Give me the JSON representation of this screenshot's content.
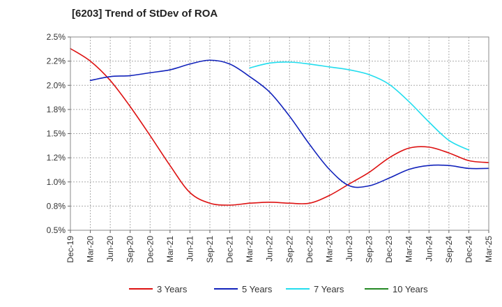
{
  "chart_data": {
    "type": "line",
    "title": "[6203]  Trend of StDev of ROA",
    "xlabel": "",
    "ylabel": "",
    "ylim": [
      0.5,
      2.5
    ],
    "y_ticks": [
      {
        "value": 0.5,
        "label": "0.5%"
      },
      {
        "value": 0.75,
        "label": "0.8%"
      },
      {
        "value": 1.0,
        "label": "1.0%"
      },
      {
        "value": 1.25,
        "label": "1.2%"
      },
      {
        "value": 1.5,
        "label": "1.5%"
      },
      {
        "value": 1.75,
        "label": "1.8%"
      },
      {
        "value": 2.0,
        "label": "2.0%"
      },
      {
        "value": 2.25,
        "label": "2.2%"
      },
      {
        "value": 2.5,
        "label": "2.5%"
      }
    ],
    "x_ticks": [
      "Dec-19",
      "Mar-20",
      "Jun-20",
      "Sep-20",
      "Dec-20",
      "Mar-21",
      "Jun-21",
      "Sep-21",
      "Dec-21",
      "Mar-22",
      "Jun-22",
      "Sep-22",
      "Dec-22",
      "Mar-23",
      "Jun-23",
      "Sep-23",
      "Dec-23",
      "Mar-24",
      "Jun-24",
      "Sep-24",
      "Dec-24",
      "Mar-25"
    ],
    "grid": true,
    "legend_position": "bottom",
    "series": [
      {
        "name": "3 Years",
        "color": "#dd1111",
        "values": [
          2.38,
          2.25,
          2.05,
          1.78,
          1.48,
          1.17,
          0.89,
          0.78,
          0.76,
          0.78,
          0.79,
          0.78,
          0.78,
          0.86,
          0.98,
          1.1,
          1.25,
          1.35,
          1.36,
          1.3,
          1.22,
          1.2
        ]
      },
      {
        "name": "5 Years",
        "color": "#1122bb",
        "values": [
          null,
          2.05,
          2.09,
          2.1,
          2.13,
          2.16,
          2.22,
          2.26,
          2.22,
          2.09,
          1.93,
          1.68,
          1.39,
          1.13,
          0.96,
          0.96,
          1.04,
          1.13,
          1.17,
          1.17,
          1.14,
          1.14
        ]
      },
      {
        "name": "7 Years",
        "color": "#22ddee",
        "values": [
          null,
          null,
          null,
          null,
          null,
          null,
          null,
          null,
          null,
          2.18,
          2.23,
          2.24,
          2.22,
          2.19,
          2.16,
          2.11,
          2.01,
          1.83,
          1.62,
          1.43,
          1.33,
          null
        ]
      },
      {
        "name": "10 Years",
        "color": "#228822",
        "values": []
      }
    ]
  }
}
